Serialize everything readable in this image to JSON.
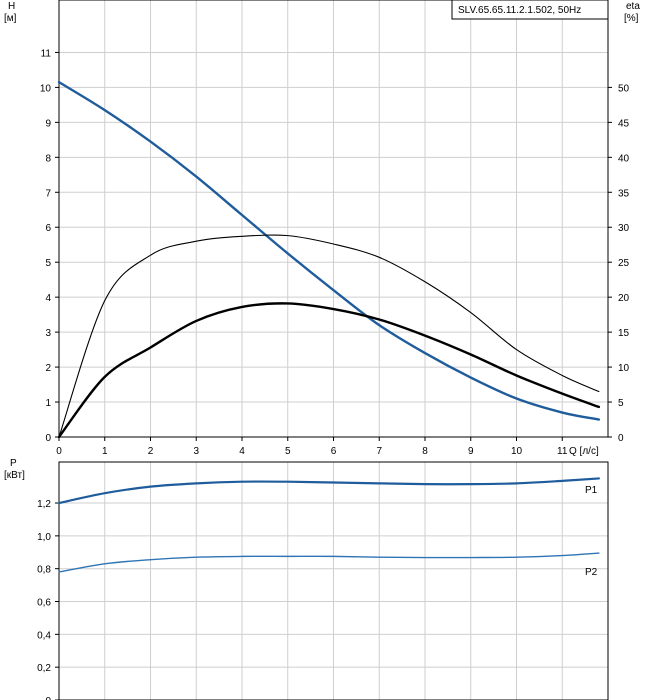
{
  "colors": {
    "head": "#1f5c9c",
    "eta_thick": "#000000",
    "eta_thin": "#000000",
    "p1": "#1f5c9c",
    "p2": "#2f74b5",
    "p_label": "#2f74b5",
    "grid": "#cfcfcf"
  },
  "chart_data": [
    {
      "type": "line",
      "title": "SLV.65.65.11.2.1.502, 50Hz",
      "ylabel_left": "H",
      "ylabel_left_unit": "[м]",
      "ylabel_right": "eta",
      "ylabel_right_unit": "[%]",
      "xlabel": "Q [л/с]",
      "xlim": [
        0,
        12
      ],
      "ylim": [
        0,
        12.5
      ],
      "ylim_right": [
        0,
        62.5
      ],
      "x_ticks": [
        0,
        1,
        2,
        3,
        4,
        5,
        6,
        7,
        8,
        9,
        10,
        11
      ],
      "y_ticks": [
        0,
        1,
        2,
        3,
        4,
        5,
        6,
        7,
        8,
        9,
        10,
        11
      ],
      "y_ticks_right": [
        0,
        5,
        10,
        15,
        20,
        25,
        30,
        35,
        40,
        45,
        50
      ],
      "grid": true,
      "series": [
        {
          "axis": "left",
          "x": [
            0,
            1,
            2,
            3,
            4,
            5,
            6,
            7,
            8,
            9,
            10,
            11,
            11.8
          ],
          "values": [
            10.15,
            9.35,
            8.45,
            7.45,
            6.35,
            5.25,
            4.2,
            3.2,
            2.4,
            1.7,
            1.1,
            0.7,
            0.5
          ]
        },
        {
          "axis": "right",
          "x": [
            0,
            1,
            2,
            3,
            4,
            5,
            6,
            7,
            8,
            9,
            10,
            11,
            11.8
          ],
          "values": [
            0,
            19.5,
            26,
            28,
            28.7,
            28.8,
            27.6,
            25.7,
            22.2,
            17.8,
            12.5,
            8.8,
            6.5
          ]
        },
        {
          "axis": "right",
          "x": [
            0,
            1,
            2,
            3,
            4,
            5,
            6,
            7,
            8,
            9,
            10,
            11,
            11.8
          ],
          "values": [
            0,
            8.6,
            12.8,
            16.6,
            18.6,
            19.1,
            18.3,
            16.8,
            14.5,
            11.8,
            8.8,
            6.2,
            4.3
          ]
        }
      ]
    },
    {
      "type": "line",
      "ylabel": "P",
      "ylabel_unit": "[кВт]",
      "xlim": [
        0,
        12
      ],
      "ylim": [
        0,
        1.45
      ],
      "x_ticks": [
        0,
        1,
        2,
        3,
        4,
        5,
        6,
        7,
        8,
        9,
        10,
        11
      ],
      "y_ticks": [
        "0",
        "0,2",
        "0,4",
        "0,6",
        "0,8",
        "1,0",
        "1,2"
      ],
      "y_tick_values": [
        0,
        0.2,
        0.4,
        0.6,
        0.8,
        1.0,
        1.2
      ],
      "grid": true,
      "series": [
        {
          "name": "P1",
          "x": [
            0,
            1,
            2,
            3,
            4,
            5,
            6,
            7,
            8,
            9,
            10,
            11,
            11.8
          ],
          "values": [
            1.2,
            1.26,
            1.3,
            1.32,
            1.33,
            1.33,
            1.325,
            1.32,
            1.315,
            1.315,
            1.32,
            1.335,
            1.35
          ]
        },
        {
          "name": "P2",
          "x": [
            0,
            1,
            2,
            3,
            4,
            5,
            6,
            7,
            8,
            9,
            10,
            11,
            11.8
          ],
          "values": [
            0.78,
            0.83,
            0.855,
            0.87,
            0.875,
            0.875,
            0.875,
            0.87,
            0.868,
            0.868,
            0.87,
            0.88,
            0.895
          ]
        }
      ]
    }
  ]
}
